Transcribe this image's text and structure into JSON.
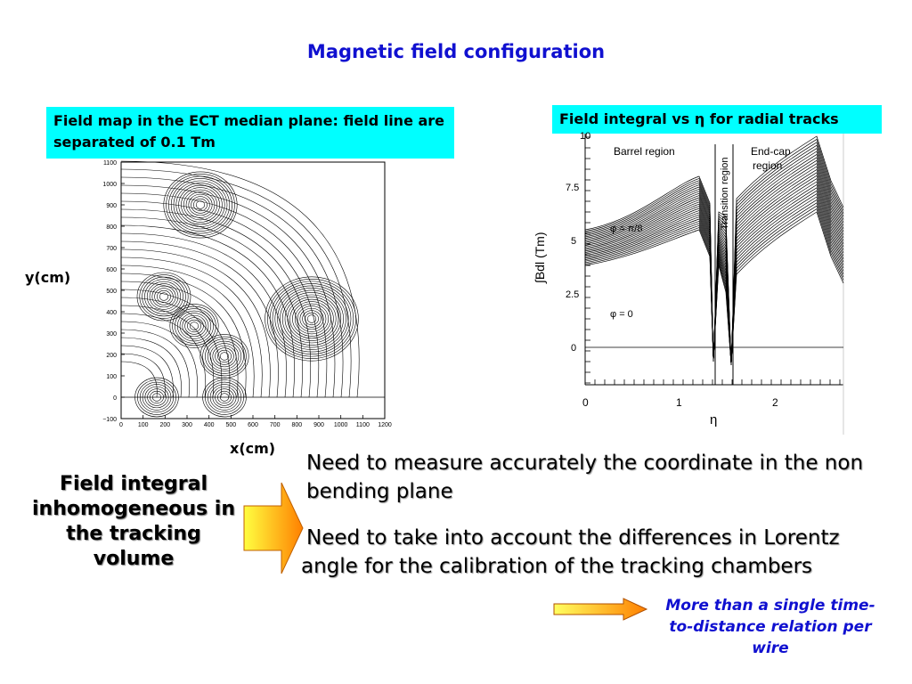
{
  "title": "Magnetic field configuration",
  "caption_left": "Field map in the ECT median plane: field line are separated of 0.1 Tm",
  "caption_right": "Field integral vs η for radial tracks",
  "field_map": {
    "ylabel": "y(cm)",
    "xlabel": "x(cm)",
    "y_ticks": [
      "1100",
      "1000",
      "900",
      "800",
      "700",
      "600",
      "500",
      "400",
      "300",
      "200",
      "100",
      "0",
      "−100"
    ],
    "x_ticks": [
      "0",
      "100",
      "200",
      "300",
      "400",
      "500",
      "600",
      "700",
      "800",
      "900",
      "1000",
      "1100",
      "1200"
    ]
  },
  "integral_plot": {
    "ylabel": "∫Bdl (Tm)",
    "xlabel": "η",
    "y_ticks": [
      "10",
      "7.5",
      "5",
      "2.5",
      "0"
    ],
    "x_ticks": [
      "0",
      "1",
      "2"
    ],
    "regions": [
      "Barrel region",
      "Transition region",
      "End-cap region"
    ],
    "phi_top": "φ = π/8",
    "phi_bottom": "φ = 0"
  },
  "left_block": "Field integral inhomogeneous in the tracking volume",
  "bullet1": "Need to measure accurately the coordinate in the non bending plane",
  "bullet2": "Need to take into account the differences in Lorentz angle for the calibration of the tracking chambers",
  "note": "More than a single time-to-distance relation per wire"
}
